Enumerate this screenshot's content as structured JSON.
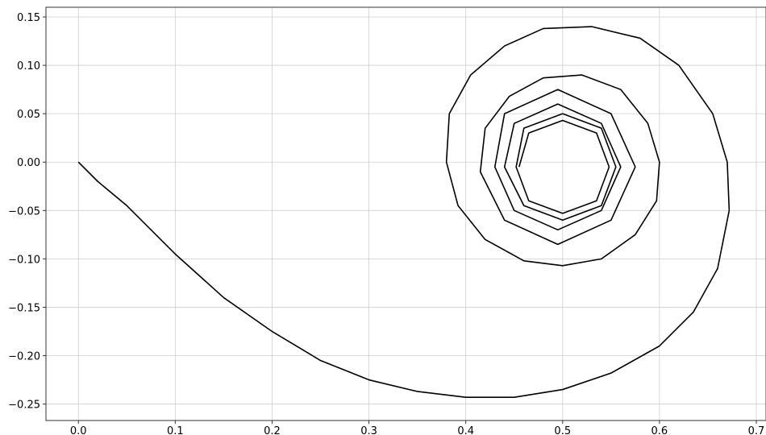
{
  "chart_data": {
    "type": "line",
    "x": [
      0.0,
      0.02,
      0.05,
      0.08,
      0.1,
      0.15,
      0.2,
      0.25,
      0.3,
      0.35,
      0.4,
      0.45,
      0.5,
      0.55,
      0.6,
      0.635,
      0.66,
      0.672,
      0.67,
      0.655,
      0.62,
      0.58,
      0.53,
      0.48,
      0.44,
      0.405,
      0.383,
      0.38,
      0.392,
      0.42,
      0.46,
      0.5,
      0.54,
      0.575,
      0.597,
      0.6,
      0.588,
      0.56,
      0.52,
      0.48,
      0.445,
      0.42,
      0.415,
      0.44,
      0.495,
      0.55,
      0.575,
      0.55,
      0.495,
      0.44,
      0.43,
      0.45,
      0.495,
      0.54,
      0.56,
      0.54,
      0.495,
      0.45,
      0.44,
      0.46,
      0.5,
      0.54,
      0.555,
      0.54,
      0.5,
      0.46,
      0.452,
      0.465,
      0.5,
      0.535,
      0.548,
      0.535,
      0.5,
      0.465,
      0.455
    ],
    "series": [
      {
        "color": "#000000",
        "values": [
          0.0,
          -0.02,
          -0.045,
          -0.075,
          -0.095,
          -0.14,
          -0.175,
          -0.205,
          -0.225,
          -0.237,
          -0.243,
          -0.243,
          -0.235,
          -0.218,
          -0.19,
          -0.155,
          -0.11,
          -0.05,
          0.0,
          0.05,
          0.1,
          0.128,
          0.14,
          0.138,
          0.12,
          0.09,
          0.05,
          0.0,
          -0.045,
          -0.08,
          -0.102,
          -0.107,
          -0.1,
          -0.075,
          -0.04,
          0.0,
          0.04,
          0.075,
          0.09,
          0.087,
          0.068,
          0.035,
          -0.01,
          -0.06,
          -0.085,
          -0.06,
          -0.005,
          0.05,
          0.075,
          0.05,
          -0.005,
          -0.05,
          -0.07,
          -0.05,
          -0.005,
          0.04,
          0.06,
          0.04,
          -0.005,
          -0.045,
          -0.06,
          -0.045,
          -0.005,
          0.035,
          0.05,
          0.035,
          -0.005,
          -0.04,
          -0.053,
          -0.04,
          -0.005,
          0.03,
          0.043,
          0.03,
          -0.005
        ]
      }
    ],
    "xlim": [
      -0.0335,
      0.71
    ],
    "ylim": [
      -0.267,
      0.16
    ],
    "xticks": [
      {
        "value": 0,
        "label": "0.0"
      },
      0.1,
      0.2,
      0.3,
      0.4,
      0.5,
      0.6,
      0.7
    ],
    "yticks": [
      {
        "value": -0.25,
        "label": "−0.25"
      },
      {
        "value": -0.2,
        "label": "−0.20"
      },
      {
        "value": -0.15,
        "label": "−0.15"
      },
      {
        "value": -0.1,
        "label": "−0.10"
      },
      {
        "value": -0.05,
        "label": "−0.05"
      },
      {
        "value": 0,
        "label": "0.00"
      },
      0.05,
      {
        "value": 0.1,
        "label": "0.10"
      },
      0.15
    ],
    "grid": true
  }
}
